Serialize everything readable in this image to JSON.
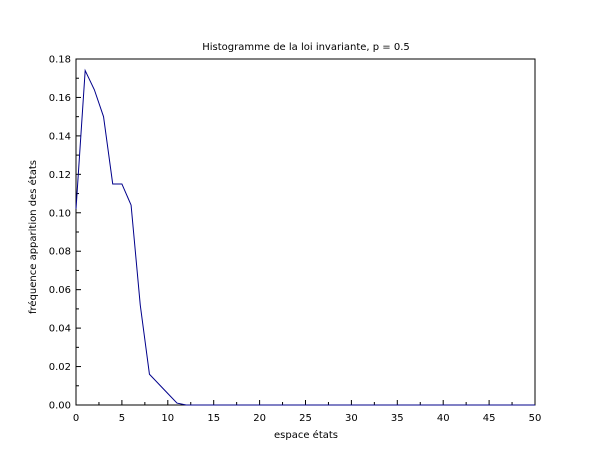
{
  "chart_data": {
    "type": "line",
    "title": "Histogramme de la loi invariante, p = 0.5",
    "xlabel": "espace états",
    "ylabel": "fréquence apparition des états",
    "xlim": [
      0,
      50
    ],
    "ylim": [
      0,
      0.18
    ],
    "x_ticks": [
      0,
      5,
      10,
      15,
      20,
      25,
      30,
      35,
      40,
      45,
      50
    ],
    "x_tick_labels": [
      "0",
      "5",
      "10",
      "15",
      "20",
      "25",
      "30",
      "35",
      "40",
      "45",
      "50"
    ],
    "y_ticks": [
      0,
      0.02,
      0.04,
      0.06,
      0.08,
      0.1,
      0.12,
      0.14,
      0.16,
      0.18
    ],
    "y_tick_labels": [
      "0.00",
      "0.02",
      "0.04",
      "0.06",
      "0.08",
      "0.10",
      "0.12",
      "0.14",
      "0.16",
      "0.18"
    ],
    "grid": false,
    "series": [
      {
        "color": "#00008b",
        "x": [
          0,
          1,
          2,
          3,
          4,
          5,
          6,
          7,
          8,
          9,
          10,
          11,
          12,
          13,
          14,
          15,
          16,
          17,
          18,
          19,
          20,
          21,
          22,
          23,
          24,
          25,
          26,
          27,
          28,
          29,
          30,
          31,
          32,
          33,
          34,
          35,
          36,
          37,
          38,
          39,
          40,
          41,
          42,
          43,
          44,
          45,
          46,
          47,
          48,
          49,
          50
        ],
        "y": [
          0.102,
          0.174,
          0.164,
          0.15,
          0.115,
          0.115,
          0.104,
          0.052,
          0.016,
          0.011,
          0.006,
          0.001,
          0,
          0,
          0,
          0,
          0,
          0,
          0,
          0,
          0,
          0,
          0,
          0,
          0,
          0,
          0,
          0,
          0,
          0,
          0,
          0,
          0,
          0,
          0,
          0,
          0,
          0,
          0,
          0,
          0,
          0,
          0,
          0,
          0,
          0,
          0,
          0,
          0,
          0,
          0
        ]
      }
    ]
  }
}
